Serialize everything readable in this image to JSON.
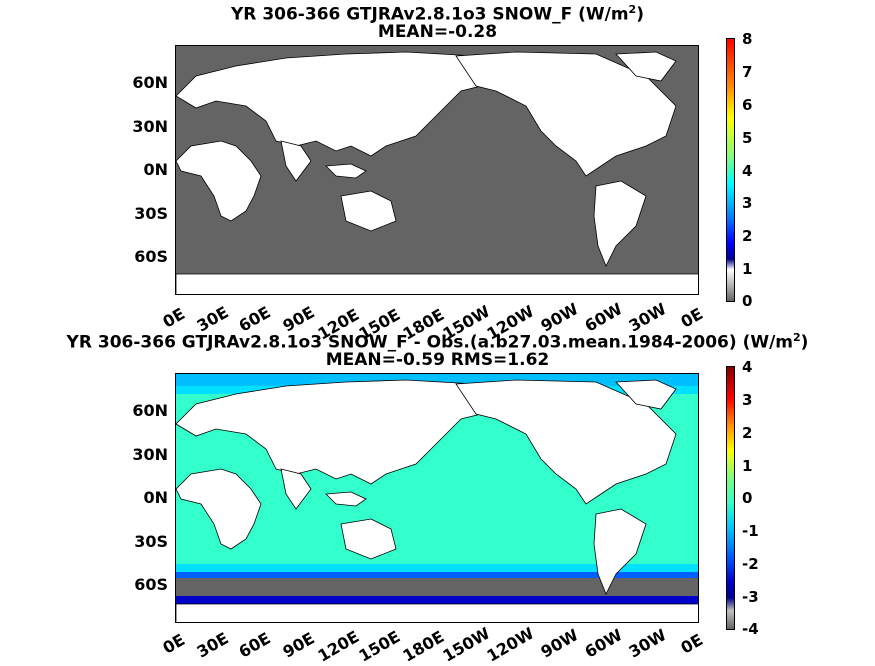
{
  "panels": [
    {
      "title_prefix": "YR 306-366 GTJRAv2.8.1o3  SNOW_F (W/m",
      "title_sup": "2",
      "title_suffix": ")",
      "subtitle": "MEAN=-0.28",
      "colorbar_ticks": [
        "8",
        "7",
        "6",
        "5",
        "4",
        "3",
        "2",
        "1",
        "0"
      ],
      "ocean_color": "#646464"
    },
    {
      "title_prefix": "YR 306-366 GTJRAv2.8.1o3 SNOW_F - Obs.(a.b27.03.mean.1984-2006) (W/m",
      "title_sup": "2",
      "title_suffix": ")",
      "subtitle": "MEAN=-0.59 RMS=1.62",
      "colorbar_ticks": [
        "4",
        "3",
        "2",
        "1",
        "0",
        "-1",
        "-2",
        "-3",
        "-4"
      ],
      "ocean_color": "#33ffcc"
    }
  ],
  "lat_labels": [
    "60N",
    "30N",
    "0N",
    "30S",
    "60S"
  ],
  "lon_labels": [
    "0E",
    "30E",
    "60E",
    "90E",
    "120E",
    "150E",
    "180E",
    "150W",
    "120W",
    "90W",
    "60W",
    "30W",
    "0E"
  ],
  "colors": {
    "land": "#ffffff",
    "masked": "#646464",
    "jet_low": "#00008f",
    "jet_mid": "#33ffcc",
    "jet_high": "#800000"
  }
}
